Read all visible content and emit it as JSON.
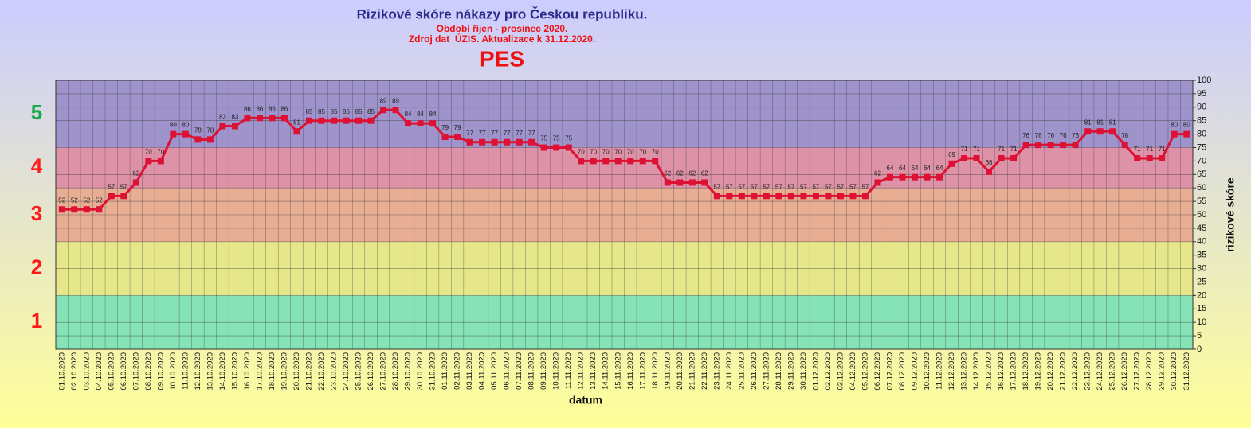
{
  "chart_data": {
    "type": "line",
    "title": "Rizikové skóre nákazy pro Českou republiku.",
    "subtitle": [
      "Období říjen - prosinec 2020.",
      "Zdroj dat  ÚZIS. Aktualizace k 31.12.2020."
    ],
    "heading": "PES",
    "x_label": "datum",
    "y_label": "rizikové skóre",
    "ylim": [
      0,
      100
    ],
    "yticks": [
      0,
      5,
      10,
      15,
      20,
      25,
      30,
      35,
      40,
      45,
      50,
      55,
      60,
      65,
      70,
      75,
      80,
      85,
      90,
      95,
      100
    ],
    "grid": true,
    "bands": [
      {
        "label": "1",
        "from": 0,
        "to": 20,
        "color": "#86e3b8",
        "label_color": "#ff1a1a"
      },
      {
        "label": "2",
        "from": 20,
        "to": 40,
        "color": "#e6e68a",
        "label_color": "#ff1a1a"
      },
      {
        "label": "3",
        "from": 40,
        "to": 60,
        "color": "#e8ae94",
        "label_color": "#ff1a1a"
      },
      {
        "label": "4",
        "from": 60,
        "to": 75,
        "color": "#dd92a8",
        "label_color": "#ff1a1a"
      },
      {
        "label": "5",
        "from": 75,
        "to": 100,
        "color": "#9f93cc",
        "label_color": "#1aaa4a"
      }
    ],
    "categories": [
      "01.10.2020",
      "02.10.2020",
      "03.10.2020",
      "04.10.2020",
      "05.10.2020",
      "06.10.2020",
      "07.10.2020",
      "08.10.2020",
      "09.10.2020",
      "10.10.2020",
      "11.10.2020",
      "12.10.2020",
      "13.10.2020",
      "14.10.2020",
      "15.10.2020",
      "16.10.2020",
      "17.10.2020",
      "18.10.2020",
      "19.10.2020",
      "20.10.2020",
      "21.10.2020",
      "22.10.2020",
      "23.10.2020",
      "24.10.2020",
      "25.10.2020",
      "26.10.2020",
      "27.10.2020",
      "28.10.2020",
      "29.10.2020",
      "30.10.2020",
      "31.10.2020",
      "01.11.2020",
      "02.11.2020",
      "03.11.2020",
      "04.11.2020",
      "05.11.2020",
      "06.11.2020",
      "07.11.2020",
      "08.11.2020",
      "09.11.2020",
      "10.11.2020",
      "11.11.2020",
      "12.11.2020",
      "13.11.2020",
      "14.11.2020",
      "15.11.2020",
      "16.11.2020",
      "17.11.2020",
      "18.11.2020",
      "19.11.2020",
      "20.11.2020",
      "21.11.2020",
      "22.11.2020",
      "23.11.2020",
      "24.11.2020",
      "25.11.2020",
      "26.11.2020",
      "27.11.2020",
      "28.11.2020",
      "29.11.2020",
      "30.11.2020",
      "01.12.2020",
      "02.12.2020",
      "03.12.2020",
      "04.12.2020",
      "05.12.2020",
      "06.12.2020",
      "07.12.2020",
      "08.12.2020",
      "09.12.2020",
      "10.12.2020",
      "11.12.2020",
      "12.12.2020",
      "13.12.2020",
      "14.12.2020",
      "15.12.2020",
      "16.12.2020",
      "17.12.2020",
      "18.12.2020",
      "19.12.2020",
      "20.12.2020",
      "21.12.2020",
      "22.12.2020",
      "23.12.2020",
      "24.12.2020",
      "25.12.2020",
      "26.12.2020",
      "27.12.2020",
      "28.12.2020",
      "29.12.2020",
      "30.12.2020",
      "31.12.2020"
    ],
    "series": [
      {
        "name": "PES",
        "color": "#dd1133",
        "values": [
          52,
          52,
          52,
          52,
          57,
          57,
          62,
          70,
          70,
          80,
          80,
          78,
          78,
          83,
          83,
          86,
          86,
          86,
          86,
          81,
          85,
          85,
          85,
          85,
          85,
          85,
          89,
          89,
          84,
          84,
          84,
          79,
          79,
          77,
          77,
          77,
          77,
          77,
          77,
          75,
          75,
          75,
          70,
          70,
          70,
          70,
          70,
          70,
          70,
          62,
          62,
          62,
          62,
          57,
          57,
          57,
          57,
          57,
          57,
          57,
          57,
          57,
          57,
          57,
          57,
          57,
          62,
          64,
          64,
          64,
          64,
          64,
          69,
          71,
          71,
          66,
          71,
          71,
          76,
          76,
          76,
          76,
          76,
          81,
          81,
          81,
          76,
          71,
          71,
          71,
          80,
          80
        ]
      }
    ]
  }
}
